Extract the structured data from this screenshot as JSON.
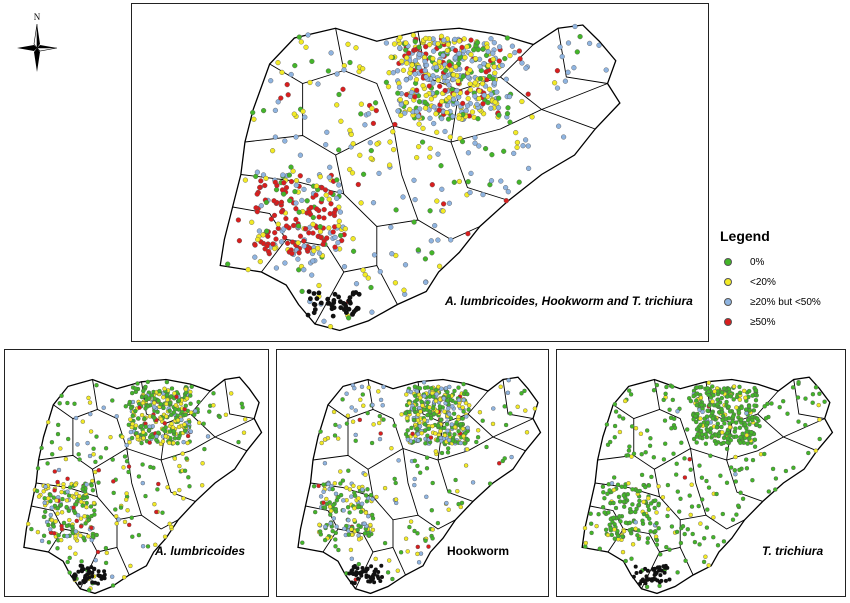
{
  "north_arrow": {
    "label": "N",
    "icon": "compass-rose-icon"
  },
  "legend": {
    "title": "Legend",
    "classes": [
      {
        "label": "0%",
        "color": "#43b529"
      },
      {
        "label": "<20%",
        "color": "#f2ea25"
      },
      {
        "label": "≥20% but <50%",
        "color": "#8fb4e0"
      },
      {
        "label": "≥50%",
        "color": "#d91e1e"
      }
    ],
    "zero_color_black": "#111111"
  },
  "maps": [
    {
      "id": "combined",
      "caption": "A. lumbricoides, Hookworm and T. trichiura",
      "mix": [
        0.16,
        0.32,
        0.38,
        0.14
      ]
    },
    {
      "id": "ascaris",
      "caption": "A. lumbricoides",
      "mix": [
        0.5,
        0.34,
        0.12,
        0.04
      ]
    },
    {
      "id": "hookworm",
      "caption": "Hookworm",
      "mix": [
        0.44,
        0.28,
        0.25,
        0.03
      ]
    },
    {
      "id": "trichuris",
      "caption": "T. trichiura",
      "mix": [
        0.82,
        0.15,
        0.025,
        0.005
      ]
    }
  ]
}
